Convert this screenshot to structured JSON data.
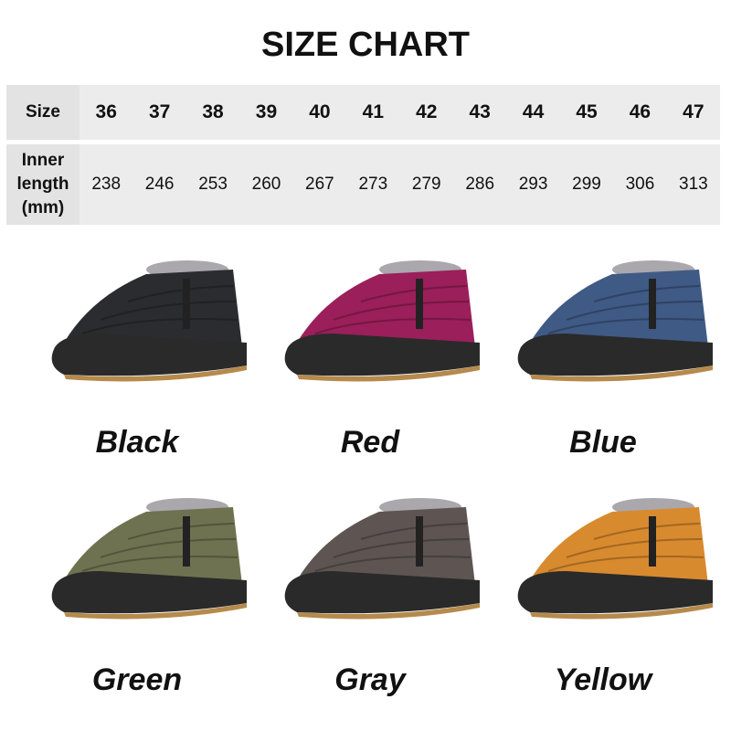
{
  "title": "SIZE CHART",
  "table": {
    "size_label": "Size",
    "sizes": [
      "36",
      "37",
      "38",
      "39",
      "40",
      "41",
      "42",
      "43",
      "44",
      "45",
      "46",
      "47"
    ],
    "length_label": "Inner length (mm)",
    "lengths": [
      "238",
      "246",
      "253",
      "260",
      "267",
      "273",
      "279",
      "286",
      "293",
      "299",
      "306",
      "313"
    ]
  },
  "colors": [
    {
      "name": "Black",
      "hex": "#2b2c2f"
    },
    {
      "name": "Red",
      "hex": "#9b1f5a"
    },
    {
      "name": "Blue",
      "hex": "#3f5a85"
    },
    {
      "name": "Green",
      "hex": "#6e7250"
    },
    {
      "name": "Gray",
      "hex": "#5e5552"
    },
    {
      "name": "Yellow",
      "hex": "#d88a2e"
    }
  ]
}
